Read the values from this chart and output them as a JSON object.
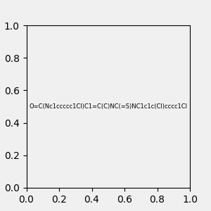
{
  "smiles": "O=C(Nc1ccccc1Cl)C1=C(C)NC(=S)NC1c1c(Cl)cccc1Cl",
  "title": "",
  "bg_color": "#f0f0f0",
  "figsize": [
    3.0,
    3.0
  ],
  "dpi": 100
}
